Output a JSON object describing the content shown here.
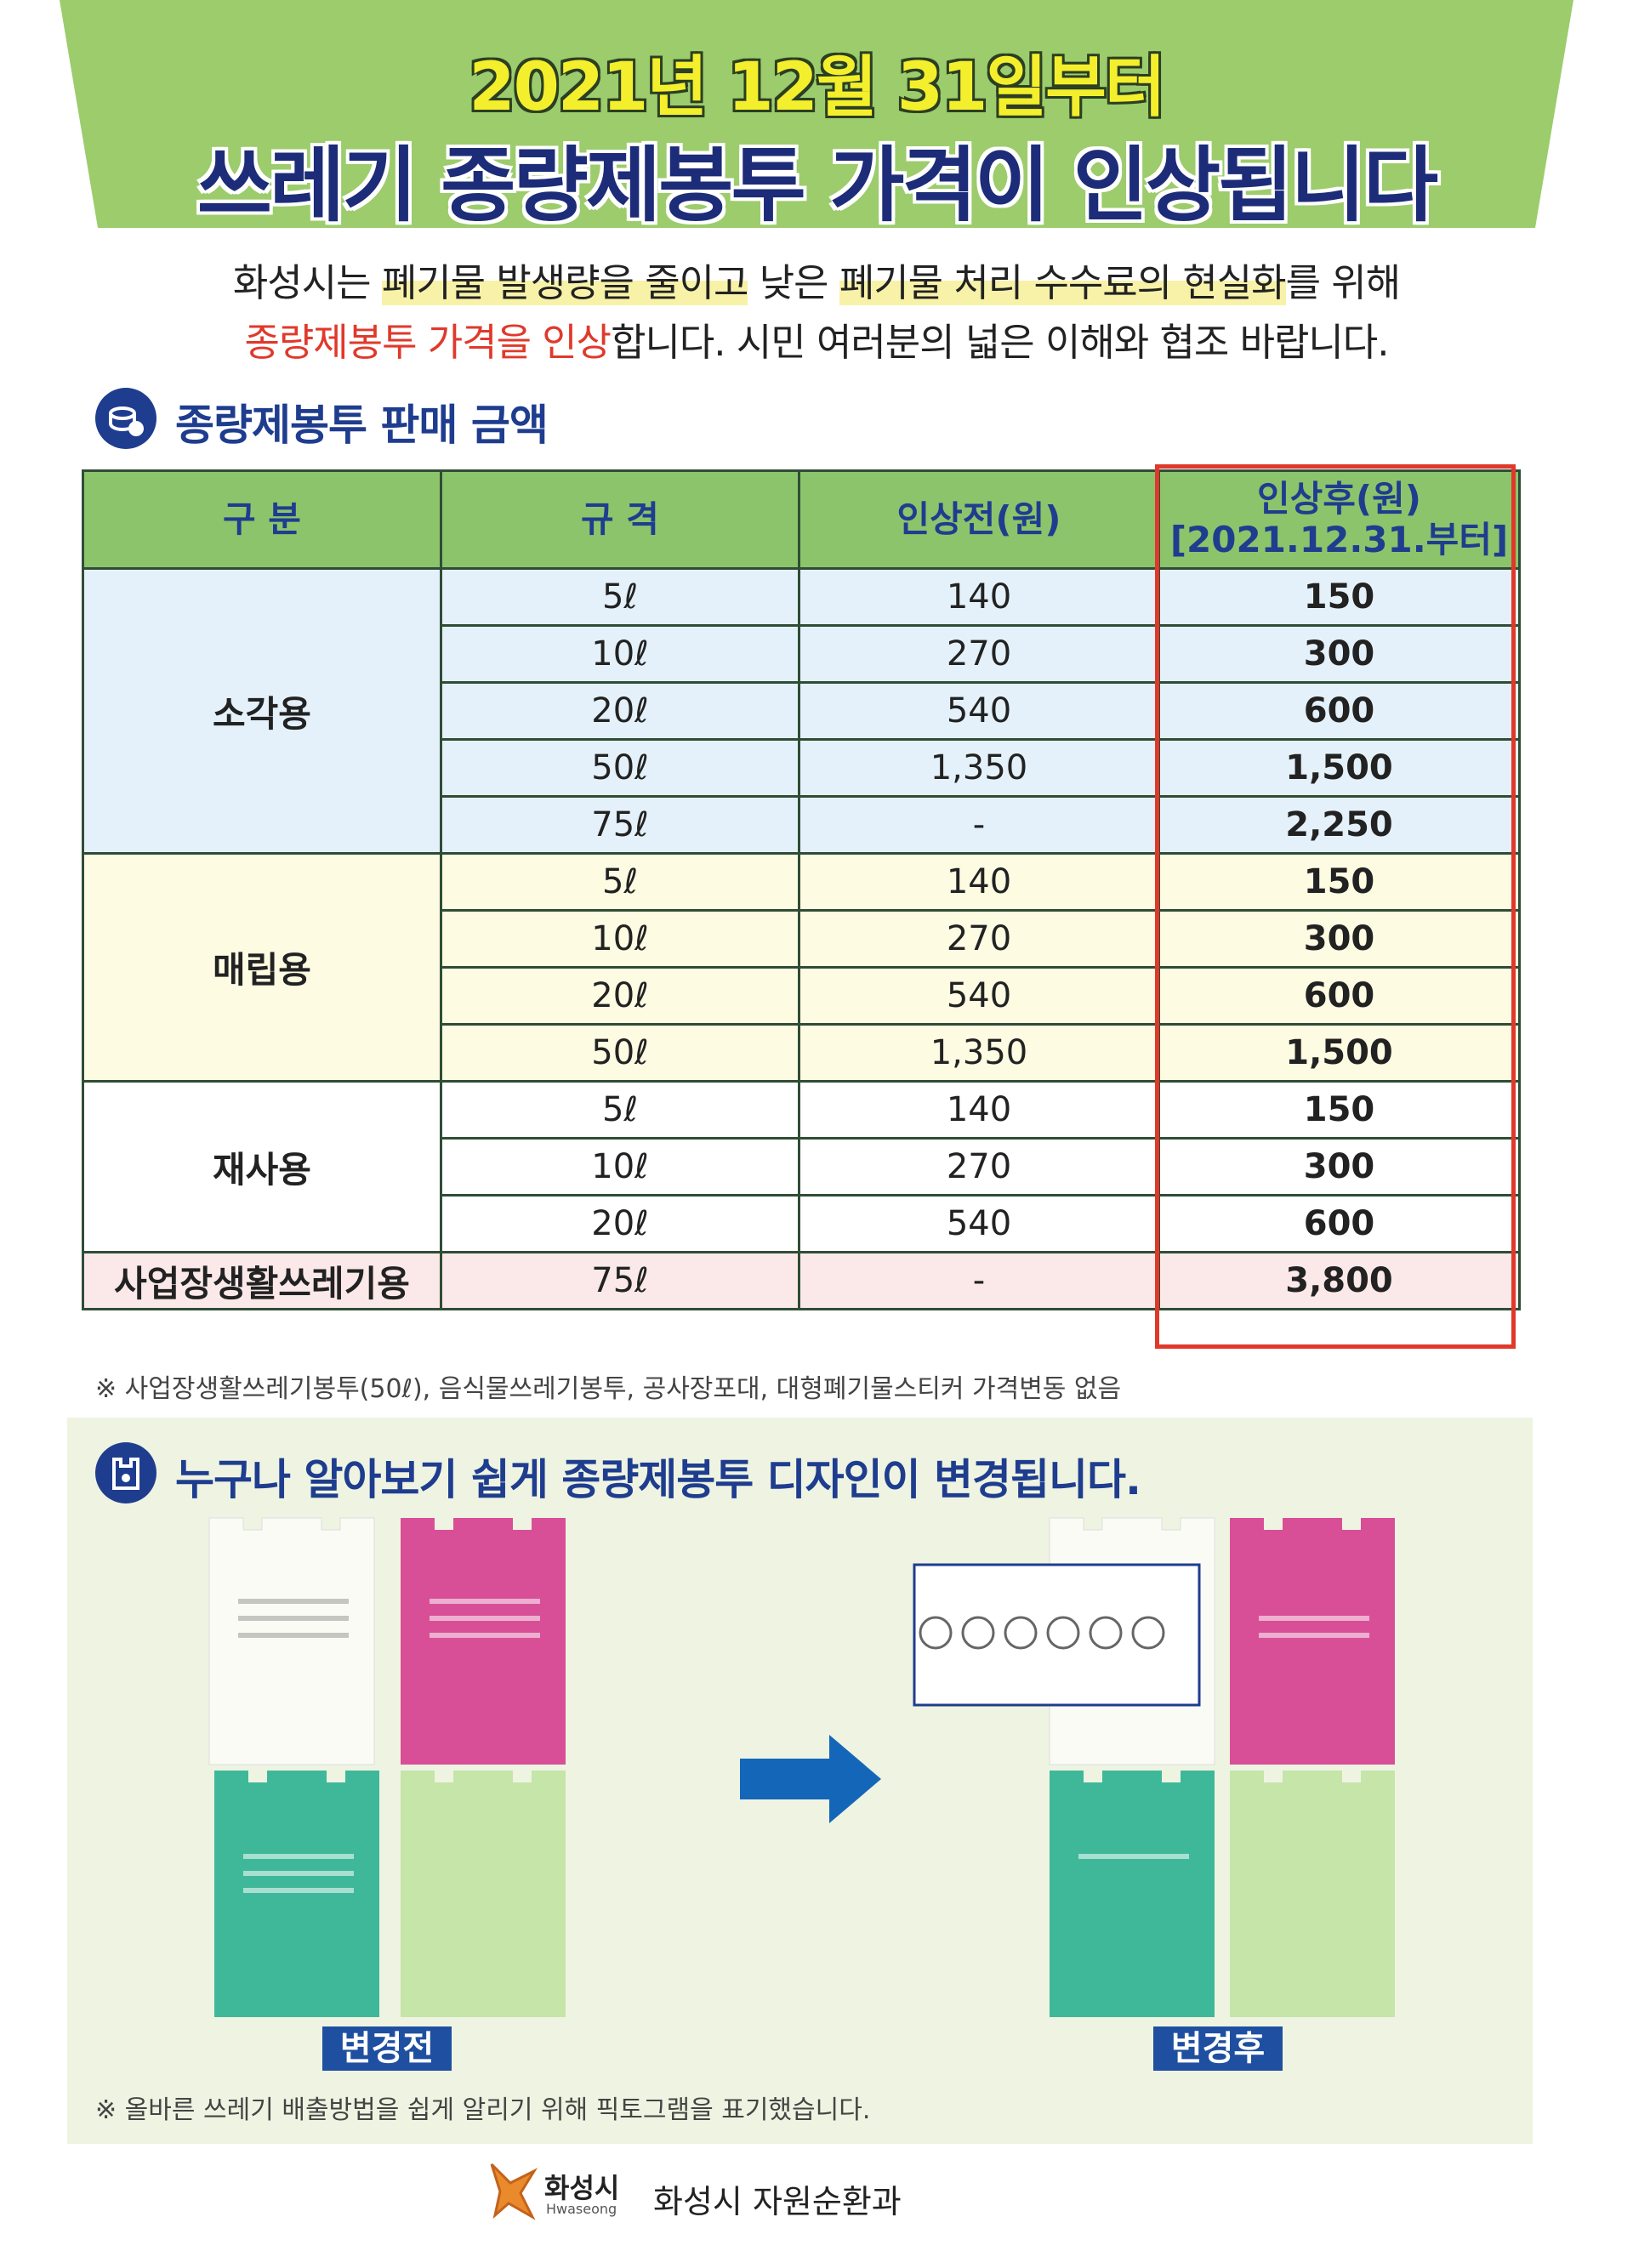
{
  "header": {
    "date": "2021년 12월 31일부터",
    "title": "쓰레기 종량제봉투 가격이 인상됩니다"
  },
  "intro": {
    "lines": [
      [
        {
          "text": "화성시는 "
        },
        {
          "text": "폐기물 발생량을 줄이고",
          "highlight": true
        },
        {
          "text": " 낮은 "
        },
        {
          "text": "폐기물 처리 수수료의 현실화",
          "highlight": true
        },
        {
          "text": "를 위해"
        }
      ],
      [
        {
          "text": "종량제봉투 가격을 인상",
          "color": "#e0392b"
        },
        {
          "text": "합니다. 시민 여러분의 넓은 이해와 협조 바랍니다."
        }
      ]
    ]
  },
  "price_section": {
    "title": "종량제봉투 판매 금액",
    "table": {
      "headers": [
        "구 분",
        "규 격",
        "인상전(원)",
        "인상후(원)"
      ],
      "after_date": "[2021.12.31.부터]",
      "groups": [
        {
          "name": "소각용",
          "color": "#e4f1fb",
          "rows": [
            [
              "5ℓ",
              "140",
              "150"
            ],
            [
              "10ℓ",
              "270",
              "300"
            ],
            [
              "20ℓ",
              "540",
              "600"
            ],
            [
              "50ℓ",
              "1,350",
              "1,500"
            ],
            [
              "75ℓ",
              "-",
              "2,250"
            ]
          ]
        },
        {
          "name": "매립용",
          "color": "#fdfbe2",
          "rows": [
            [
              "5ℓ",
              "140",
              "150"
            ],
            [
              "10ℓ",
              "270",
              "300"
            ],
            [
              "20ℓ",
              "540",
              "600"
            ],
            [
              "50ℓ",
              "1,350",
              "1,500"
            ]
          ]
        },
        {
          "name": "재사용",
          "color": "#ffffff",
          "rows": [
            [
              "5ℓ",
              "140",
              "150"
            ],
            [
              "10ℓ",
              "270",
              "300"
            ],
            [
              "20ℓ",
              "540",
              "600"
            ]
          ]
        },
        {
          "name": "사업장생활쓰레기용",
          "color": "#fbe9e9",
          "rows": [
            [
              "75ℓ",
              "-",
              "3,800"
            ]
          ]
        }
      ]
    },
    "note": "※ 사업장생활쓰레기봉투(50ℓ), 음식물쓰레기봉투, 공사장포대, 대형폐기물스티커 가격변동 없음"
  },
  "design_section": {
    "title": "누구나 알아보기 쉽게 종량제봉투 디자인이 변경됩니다.",
    "before_label": "변경전",
    "after_label": "변경후",
    "note": "※ 올바른 쓰레기 배출방법을 쉽게 알리기 위해 픽토그램을 표기했습니다."
  },
  "footer": {
    "logo": "화성시",
    "logo_en": "Hwaseong",
    "department": "화성시 자원순환과"
  }
}
